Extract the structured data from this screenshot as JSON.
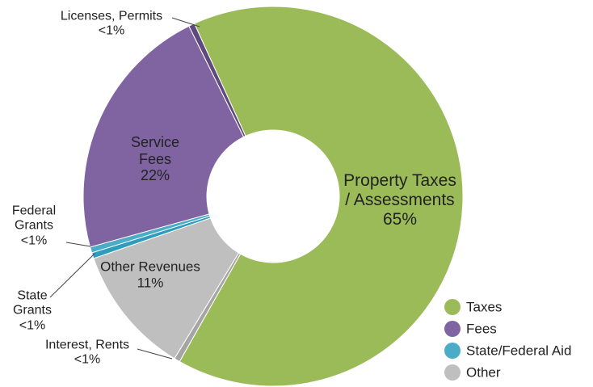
{
  "chart_data": {
    "type": "donut",
    "categories": [
      "Property Taxes / Assessments",
      "Interest, Rents",
      "Other Revenues",
      "State Grants",
      "Federal Grants",
      "Service Fees",
      "Licenses, Permits"
    ],
    "values": [
      65,
      0.5,
      11,
      0.5,
      0.5,
      22,
      0.5
    ],
    "value_labels": [
      "65%",
      "<1%",
      "11%",
      "<1%",
      "<1%",
      "22%",
      "<1%"
    ],
    "colors": [
      "#9bbb59",
      "#a5a5a5",
      "#bfbfbf",
      "#2e9cbc",
      "#4bacc6",
      "#8064a2",
      "#5f4a7d"
    ],
    "legend_position": "bottom-right",
    "legend": [
      {
        "name": "Taxes",
        "color": "#9bbb59"
      },
      {
        "name": "Fees",
        "color": "#8064a2"
      },
      {
        "name": "State/Federal Aid",
        "color": "#4bacc6"
      },
      {
        "name": "Other",
        "color": "#bfbfbf"
      }
    ]
  }
}
